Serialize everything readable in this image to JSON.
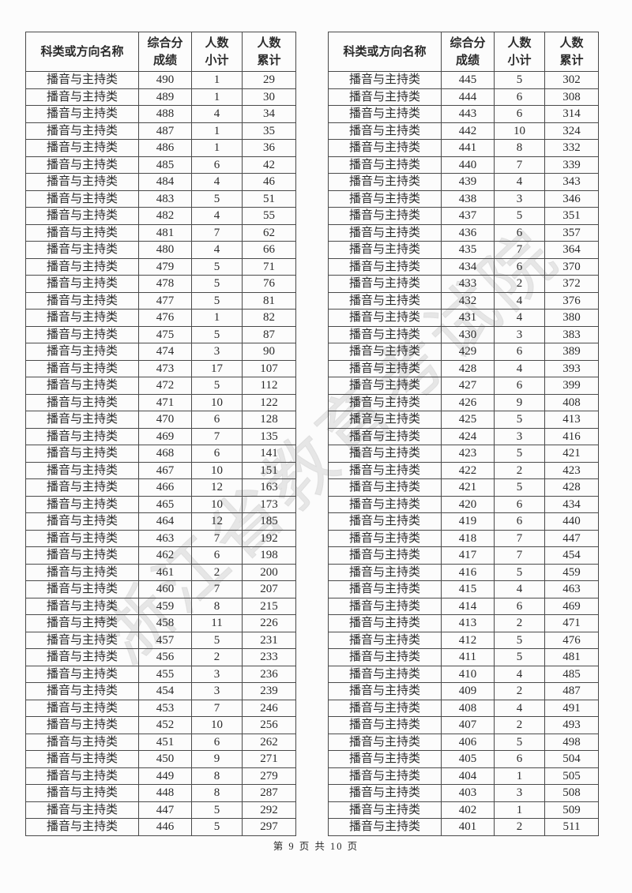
{
  "colors": {
    "page_bg": "#fcfcfc",
    "text": "#2b2b2b",
    "table_border": "#4a4a4a",
    "watermark": "#c8c8c8"
  },
  "watermark": {
    "text": "浙江省教育考试院"
  },
  "table": {
    "headers": [
      {
        "lines": [
          "科类或方向名称"
        ]
      },
      {
        "lines": [
          "综合分",
          "成绩"
        ]
      },
      {
        "lines": [
          "人数",
          "小计"
        ]
      },
      {
        "lines": [
          "人数",
          "累计"
        ]
      }
    ],
    "category": "播音与主持类"
  },
  "left_rows": [
    [
      490,
      1,
      29
    ],
    [
      489,
      1,
      30
    ],
    [
      488,
      4,
      34
    ],
    [
      487,
      1,
      35
    ],
    [
      486,
      1,
      36
    ],
    [
      485,
      6,
      42
    ],
    [
      484,
      4,
      46
    ],
    [
      483,
      5,
      51
    ],
    [
      482,
      4,
      55
    ],
    [
      481,
      7,
      62
    ],
    [
      480,
      4,
      66
    ],
    [
      479,
      5,
      71
    ],
    [
      478,
      5,
      76
    ],
    [
      477,
      5,
      81
    ],
    [
      476,
      1,
      82
    ],
    [
      475,
      5,
      87
    ],
    [
      474,
      3,
      90
    ],
    [
      473,
      17,
      107
    ],
    [
      472,
      5,
      112
    ],
    [
      471,
      10,
      122
    ],
    [
      470,
      6,
      128
    ],
    [
      469,
      7,
      135
    ],
    [
      468,
      6,
      141
    ],
    [
      467,
      10,
      151
    ],
    [
      466,
      12,
      163
    ],
    [
      465,
      10,
      173
    ],
    [
      464,
      12,
      185
    ],
    [
      463,
      7,
      192
    ],
    [
      462,
      6,
      198
    ],
    [
      461,
      2,
      200
    ],
    [
      460,
      7,
      207
    ],
    [
      459,
      8,
      215
    ],
    [
      458,
      11,
      226
    ],
    [
      457,
      5,
      231
    ],
    [
      456,
      2,
      233
    ],
    [
      455,
      3,
      236
    ],
    [
      454,
      3,
      239
    ],
    [
      453,
      7,
      246
    ],
    [
      452,
      10,
      256
    ],
    [
      451,
      6,
      262
    ],
    [
      450,
      9,
      271
    ],
    [
      449,
      8,
      279
    ],
    [
      448,
      8,
      287
    ],
    [
      447,
      5,
      292
    ],
    [
      446,
      5,
      297
    ]
  ],
  "right_rows": [
    [
      445,
      5,
      302
    ],
    [
      444,
      6,
      308
    ],
    [
      443,
      6,
      314
    ],
    [
      442,
      10,
      324
    ],
    [
      441,
      8,
      332
    ],
    [
      440,
      7,
      339
    ],
    [
      439,
      4,
      343
    ],
    [
      438,
      3,
      346
    ],
    [
      437,
      5,
      351
    ],
    [
      436,
      6,
      357
    ],
    [
      435,
      7,
      364
    ],
    [
      434,
      6,
      370
    ],
    [
      433,
      2,
      372
    ],
    [
      432,
      4,
      376
    ],
    [
      431,
      4,
      380
    ],
    [
      430,
      3,
      383
    ],
    [
      429,
      6,
      389
    ],
    [
      428,
      4,
      393
    ],
    [
      427,
      6,
      399
    ],
    [
      426,
      9,
      408
    ],
    [
      425,
      5,
      413
    ],
    [
      424,
      3,
      416
    ],
    [
      423,
      5,
      421
    ],
    [
      422,
      2,
      423
    ],
    [
      421,
      5,
      428
    ],
    [
      420,
      6,
      434
    ],
    [
      419,
      6,
      440
    ],
    [
      418,
      7,
      447
    ],
    [
      417,
      7,
      454
    ],
    [
      416,
      5,
      459
    ],
    [
      415,
      4,
      463
    ],
    [
      414,
      6,
      469
    ],
    [
      413,
      2,
      471
    ],
    [
      412,
      5,
      476
    ],
    [
      411,
      5,
      481
    ],
    [
      410,
      4,
      485
    ],
    [
      409,
      2,
      487
    ],
    [
      408,
      4,
      491
    ],
    [
      407,
      2,
      493
    ],
    [
      406,
      5,
      498
    ],
    [
      405,
      6,
      504
    ],
    [
      404,
      1,
      505
    ],
    [
      403,
      3,
      508
    ],
    [
      402,
      1,
      509
    ],
    [
      401,
      2,
      511
    ]
  ],
  "footer": {
    "text": "第 9 页 共 10 页",
    "current_page": 9,
    "total_pages": 10
  }
}
